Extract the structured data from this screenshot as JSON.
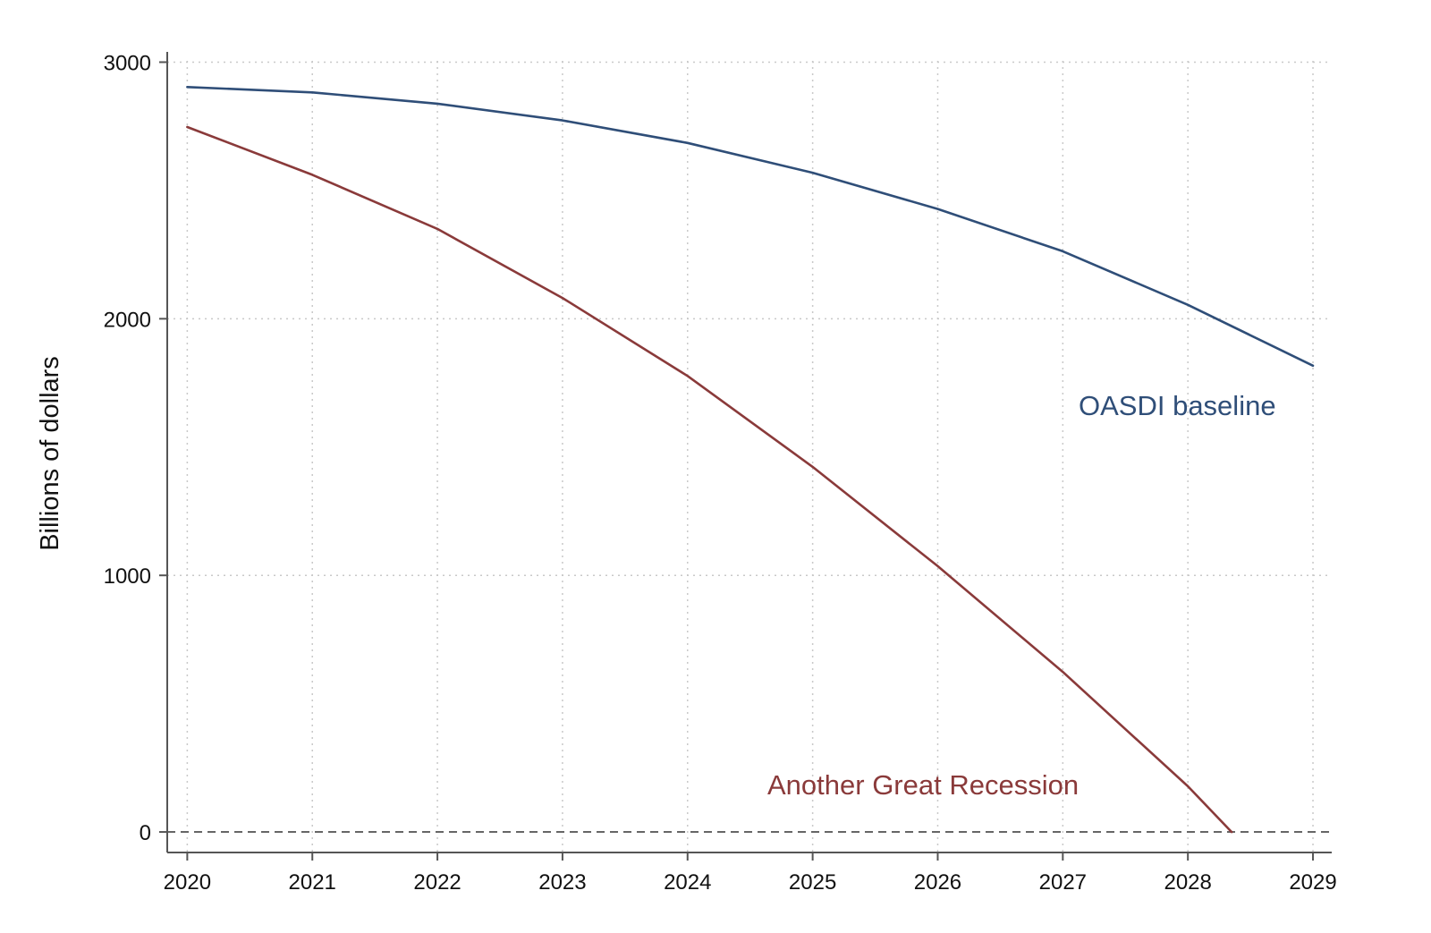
{
  "chart_data": {
    "type": "line",
    "title": "",
    "xlabel": "",
    "ylabel": "Billions of dollars",
    "x": [
      2020,
      2021,
      2022,
      2023,
      2024,
      2025,
      2026,
      2027,
      2028,
      2029
    ],
    "xlim": [
      2019.84,
      2029.15
    ],
    "ylim": [
      -80,
      3040
    ],
    "y_ticks": [
      0,
      1000,
      2000,
      3000
    ],
    "grid": true,
    "reference_line": 0,
    "legend": "inline labels",
    "series": [
      {
        "name": "OASDI baseline",
        "color": "#2f4e78",
        "points": [
          [
            2020,
            2903
          ],
          [
            2021,
            2882
          ],
          [
            2022,
            2838
          ],
          [
            2023,
            2773
          ],
          [
            2024,
            2685
          ],
          [
            2025,
            2569
          ],
          [
            2026,
            2428
          ],
          [
            2027,
            2263
          ],
          [
            2028,
            2054
          ],
          [
            2029,
            1817
          ]
        ]
      },
      {
        "name": "Another Great Recession",
        "color": "#8a3a3a",
        "points": [
          [
            2020,
            2747
          ],
          [
            2021,
            2561
          ],
          [
            2022,
            2350
          ],
          [
            2023,
            2081
          ],
          [
            2024,
            1777
          ],
          [
            2025,
            1423
          ],
          [
            2026,
            1036
          ],
          [
            2027,
            624
          ],
          [
            2028,
            178
          ],
          [
            2028.35,
            0
          ]
        ]
      }
    ]
  }
}
